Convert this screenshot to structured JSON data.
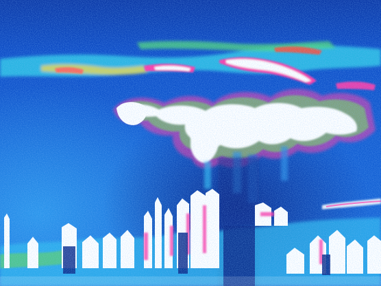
{
  "image": {
    "kind": "false-color-scan",
    "palette": {
      "deep": "#0a2a8a",
      "base": "#1250c8",
      "mid": "#1e7fe0",
      "cyan": "#3fd6ff",
      "green": "#5dd06a",
      "yellow": "#f2e24a",
      "magenta": "#ff3aa8",
      "red": "#ff4a3a",
      "white": "#ffffff"
    }
  }
}
